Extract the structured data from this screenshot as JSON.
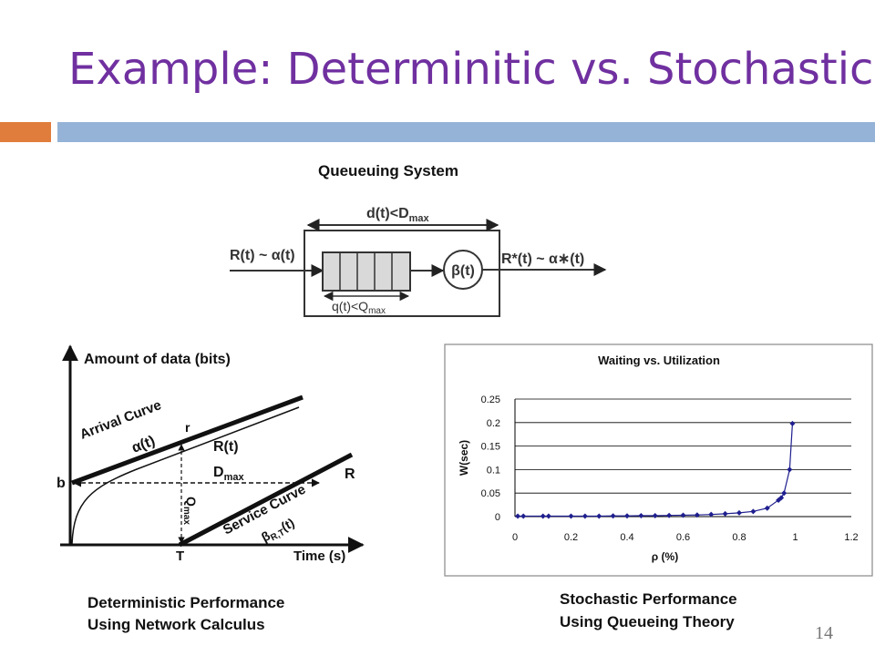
{
  "slide": {
    "title": "Example: Determinitic vs. Stochastic",
    "page_number": "14",
    "colors": {
      "title": "#7030a0",
      "accent_orange": "#e07d3c",
      "accent_blue": "#95b3d7"
    }
  },
  "queue_diagram": {
    "title": "Queueuing System",
    "delay_label": "d(t)<D",
    "delay_sub": "max",
    "input_label": "R(t) ~ α(t)",
    "server_label": "β(t)",
    "output_label": "R*(t) ~ α∗(t)",
    "backlog_label": "q(t)<Q",
    "backlog_sub": "max"
  },
  "nc_diagram": {
    "y_label": "Amount of data (bits)",
    "x_label": "Time (s)",
    "arrival_label": "Arrival Curve",
    "arrival_func": "α(t)",
    "rt_label": "R(t)",
    "r_label": "r",
    "b_label": "b",
    "dmax_label": "D",
    "dmax_sub": "max",
    "qmax_label": "Q",
    "qmax_sub": "max",
    "service_label": "Service Curve",
    "service_func": "β",
    "service_sub": "R,T",
    "service_func_tail": "(t)",
    "R_label": "R",
    "T_label": "T",
    "caption_line1": "Deterministic Performance",
    "caption_line2": "Using Network Calculus"
  },
  "chart_caption": {
    "line1": "Stochastic Performance",
    "line2": "Using Queueing Theory"
  },
  "chart_data": {
    "type": "scatter",
    "title": "Waiting vs. Utilization",
    "xlabel": "ρ (%)",
    "ylabel": "W(sec)",
    "xlim": [
      0,
      1.2
    ],
    "ylim": [
      0,
      0.25
    ],
    "x_ticks": [
      "0",
      "0.2",
      "0.4",
      "0.6",
      "0.8",
      "1",
      "1.2"
    ],
    "y_ticks": [
      "0",
      "0.05",
      "0.1",
      "0.15",
      "0.2",
      "0.25"
    ],
    "grid": true,
    "series": [
      {
        "color": "#1f1f8f",
        "x": [
          0.01,
          0.03,
          0.1,
          0.12,
          0.2,
          0.25,
          0.3,
          0.35,
          0.4,
          0.45,
          0.5,
          0.55,
          0.6,
          0.65,
          0.7,
          0.75,
          0.8,
          0.85,
          0.9,
          0.94,
          0.95,
          0.96,
          0.98,
          0.99
        ],
        "y": [
          0.001,
          0.001,
          0.001,
          0.001,
          0.001,
          0.001,
          0.001,
          0.0015,
          0.0015,
          0.002,
          0.002,
          0.0025,
          0.003,
          0.0035,
          0.0045,
          0.006,
          0.008,
          0.011,
          0.018,
          0.035,
          0.04,
          0.05,
          0.1,
          0.198
        ]
      }
    ]
  }
}
